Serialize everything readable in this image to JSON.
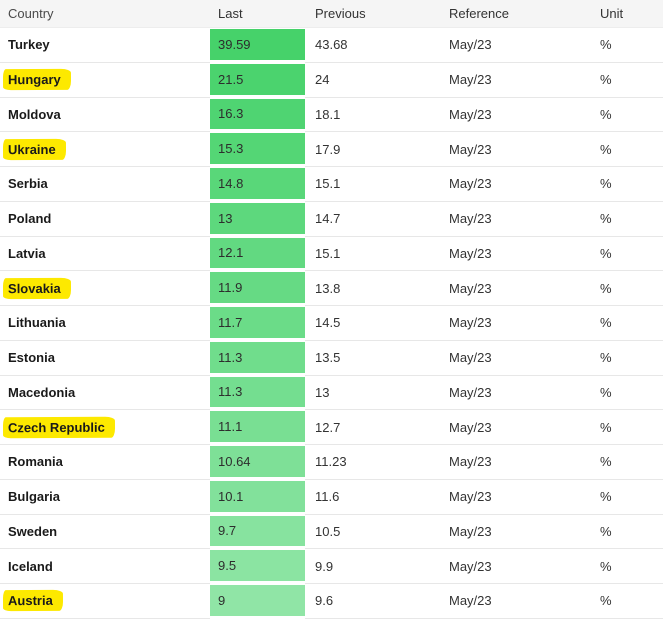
{
  "colors": {
    "header_bg": "#f5f5f5",
    "header_text": "#4a4a4a",
    "row_border": "#e7e7e7",
    "country_text": "#1a1a1a",
    "value_text": "#333333",
    "highlight": "#fde900",
    "green_max": "#46d26a",
    "green_min": "#90e5a6"
  },
  "table": {
    "columns": [
      "Country",
      "Last",
      "Previous",
      "Reference",
      "Unit"
    ],
    "rows": [
      {
        "country": "Turkey",
        "last": "39.59",
        "previous": "43.68",
        "reference": "May/23",
        "unit": "%",
        "highlighted": false,
        "last_bg": "#46d26a"
      },
      {
        "country": "Hungary",
        "last": "21.5",
        "previous": "24",
        "reference": "May/23",
        "unit": "%",
        "highlighted": true,
        "last_bg": "#4bd36e"
      },
      {
        "country": "Moldova",
        "last": "16.3",
        "previous": "18.1",
        "reference": "May/23",
        "unit": "%",
        "highlighted": false,
        "last_bg": "#4fd472"
      },
      {
        "country": "Ukraine",
        "last": "15.3",
        "previous": "17.9",
        "reference": "May/23",
        "unit": "%",
        "highlighted": true,
        "last_bg": "#54d675"
      },
      {
        "country": "Serbia",
        "last": "14.8",
        "previous": "15.1",
        "reference": "May/23",
        "unit": "%",
        "highlighted": false,
        "last_bg": "#59d779"
      },
      {
        "country": "Poland",
        "last": "13",
        "previous": "14.7",
        "reference": "May/23",
        "unit": "%",
        "highlighted": false,
        "last_bg": "#5dd87d"
      },
      {
        "country": "Latvia",
        "last": "12.1",
        "previous": "15.1",
        "reference": "May/23",
        "unit": "%",
        "highlighted": false,
        "last_bg": "#62d981"
      },
      {
        "country": "Slovakia",
        "last": "11.9",
        "previous": "13.8",
        "reference": "May/23",
        "unit": "%",
        "highlighted": true,
        "last_bg": "#66da84"
      },
      {
        "country": "Lithuania",
        "last": "11.7",
        "previous": "14.5",
        "reference": "May/23",
        "unit": "%",
        "highlighted": false,
        "last_bg": "#6bdc88"
      },
      {
        "country": "Estonia",
        "last": "11.3",
        "previous": "13.5",
        "reference": "May/23",
        "unit": "%",
        "highlighted": false,
        "last_bg": "#70dd8c"
      },
      {
        "country": "Macedonia",
        "last": "11.3",
        "previous": "13",
        "reference": "May/23",
        "unit": "%",
        "highlighted": false,
        "last_bg": "#74de90"
      },
      {
        "country": "Czech Republic",
        "last": "11.1",
        "previous": "12.7",
        "reference": "May/23",
        "unit": "%",
        "highlighted": true,
        "last_bg": "#79df93"
      },
      {
        "country": "Romania",
        "last": "10.64",
        "previous": "11.23",
        "reference": "May/23",
        "unit": "%",
        "highlighted": false,
        "last_bg": "#7ee097"
      },
      {
        "country": "Bulgaria",
        "last": "10.1",
        "previous": "11.6",
        "reference": "May/23",
        "unit": "%",
        "highlighted": false,
        "last_bg": "#82e19b"
      },
      {
        "country": "Sweden",
        "last": "9.7",
        "previous": "10.5",
        "reference": "May/23",
        "unit": "%",
        "highlighted": false,
        "last_bg": "#87e39f"
      },
      {
        "country": "Iceland",
        "last": "9.5",
        "previous": "9.9",
        "reference": "May/23",
        "unit": "%",
        "highlighted": false,
        "last_bg": "#8be4a2"
      },
      {
        "country": "Austria",
        "last": "9",
        "previous": "9.6",
        "reference": "May/23",
        "unit": "%",
        "highlighted": true,
        "last_bg": "#90e5a6"
      }
    ]
  }
}
